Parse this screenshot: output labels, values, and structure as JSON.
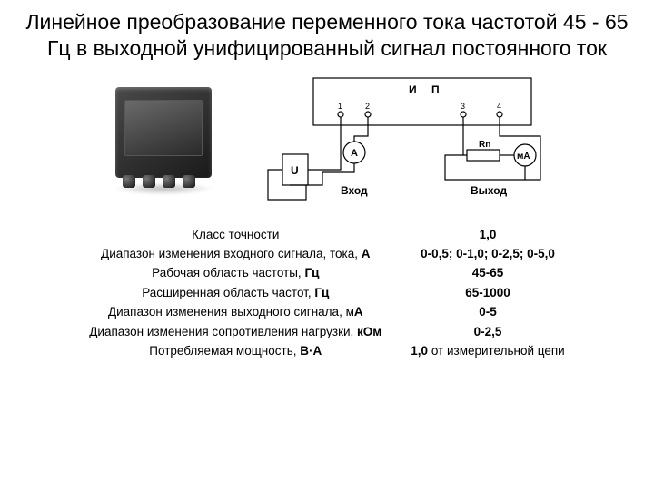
{
  "title": "Линейное преобразование переменного тока частотой 45 - 65 Гц в выходной унифицированный сигнал постоянного ток",
  "schematic": {
    "block_label_1": "И",
    "block_label_2": "П",
    "terminals": [
      "1",
      "2",
      "3",
      "4"
    ],
    "u_label": "U",
    "a_label": "A",
    "ma_label": "мА",
    "rn_label": "Rn",
    "input_label": "Вход",
    "output_label": "Выход",
    "colors": {
      "stroke": "#000000",
      "text": "#000000",
      "bg": "#ffffff"
    },
    "line_width": 1.2
  },
  "specs": [
    {
      "label": "Класс точности",
      "unit": "",
      "value": "1,0"
    },
    {
      "label": "Диапазон изменения входного сигнала, тока, ",
      "unit": "А",
      "value": "0-0,5; 0-1,0; 0-2,5; 0-5,0"
    },
    {
      "label": "Рабочая область частоты, ",
      "unit": "Гц",
      "value": "45-65"
    },
    {
      "label": "Расширенная область частот, ",
      "unit": "Гц",
      "value": "65-1000"
    },
    {
      "label": "Диапазон изменения выходного сигнала, м",
      "unit": "А",
      "value": "0-5"
    },
    {
      "label": "Диапазон изменения сопротивления нагрузки, ",
      "unit": "кОм",
      "value": "0-2,5"
    },
    {
      "label": "Потребляемая мощность, ",
      "unit": "В·А",
      "value": "1,0 от измерительной цепи"
    }
  ]
}
